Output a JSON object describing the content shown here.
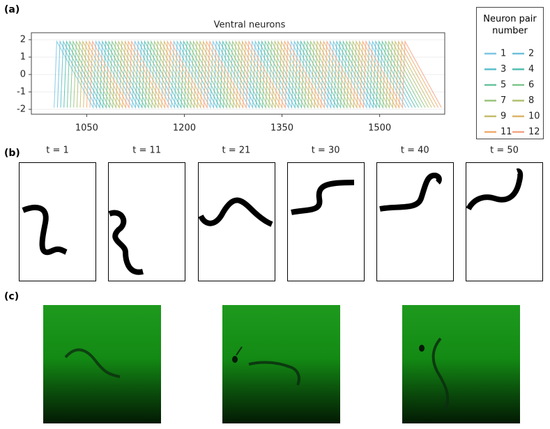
{
  "panel_labels": [
    "(a)",
    "(b)",
    "(c)"
  ],
  "chart_data": {
    "type": "line",
    "title": "Ventral neurons",
    "legend_title": "Neuron pair number",
    "xlim": [
      965,
      1600
    ],
    "ylim": [
      -2.28,
      2.4
    ],
    "xticks": [
      1050,
      1200,
      1350,
      1500
    ],
    "yticks": [
      -2,
      -1,
      0,
      1,
      2
    ],
    "grid": true,
    "series": [
      {
        "name": "1",
        "color": "#7cc6e2",
        "x": [
          1000,
          1004,
          1060,
          1064,
          1120,
          1124,
          1180,
          1184,
          1240,
          1244,
          1300,
          1304,
          1360,
          1364,
          1420,
          1424,
          1480,
          1484,
          1540
        ],
        "values": [
          -1.9,
          1.9,
          -1.9,
          1.9,
          -1.9,
          1.9,
          -1.9,
          1.9,
          -1.9,
          1.9,
          -1.9,
          1.9,
          -1.9,
          1.9,
          -1.9,
          1.9,
          -1.9,
          1.9,
          -1.9
        ]
      },
      {
        "name": "2",
        "color": "#6cc0da",
        "x": [
          1005,
          1009,
          1065,
          1069,
          1125,
          1129,
          1185,
          1189,
          1245,
          1249,
          1305,
          1309,
          1365,
          1369,
          1425,
          1429,
          1485,
          1489,
          1545
        ],
        "values": [
          -1.9,
          1.9,
          -1.9,
          1.9,
          -1.9,
          1.9,
          -1.9,
          1.9,
          -1.9,
          1.9,
          -1.9,
          1.9,
          -1.9,
          1.9,
          -1.9,
          1.9,
          -1.9,
          1.9,
          -1.9
        ]
      },
      {
        "name": "3",
        "color": "#5cbfcc",
        "x": [
          1010,
          1014,
          1070,
          1074,
          1130,
          1134,
          1190,
          1194,
          1250,
          1254,
          1310,
          1314,
          1370,
          1374,
          1430,
          1434,
          1490,
          1494,
          1550
        ],
        "values": [
          -1.9,
          1.9,
          -1.9,
          1.9,
          -1.9,
          1.9,
          -1.9,
          1.9,
          -1.9,
          1.9,
          -1.9,
          1.9,
          -1.9,
          1.9,
          -1.9,
          1.9,
          -1.9,
          1.9,
          -1.9
        ]
      },
      {
        "name": "4",
        "color": "#52bdb0",
        "x": [
          1015,
          1019,
          1075,
          1079,
          1135,
          1139,
          1195,
          1199,
          1255,
          1259,
          1315,
          1319,
          1375,
          1379,
          1435,
          1439,
          1495,
          1499,
          1555
        ],
        "values": [
          -1.9,
          1.9,
          -1.9,
          1.9,
          -1.9,
          1.9,
          -1.9,
          1.9,
          -1.9,
          1.9,
          -1.9,
          1.9,
          -1.9,
          1.9,
          -1.9,
          1.9,
          -1.9,
          1.9,
          -1.9
        ]
      },
      {
        "name": "5",
        "color": "#66c39c",
        "x": [
          1020,
          1024,
          1080,
          1084,
          1140,
          1144,
          1200,
          1204,
          1260,
          1264,
          1320,
          1324,
          1380,
          1384,
          1440,
          1444,
          1500,
          1504,
          1560
        ],
        "values": [
          -1.9,
          1.9,
          -1.9,
          1.9,
          -1.9,
          1.9,
          -1.9,
          1.9,
          -1.9,
          1.9,
          -1.9,
          1.9,
          -1.9,
          1.9,
          -1.9,
          1.9,
          -1.9,
          1.9,
          -1.9
        ]
      },
      {
        "name": "6",
        "color": "#7ec48c",
        "x": [
          1025,
          1029,
          1085,
          1089,
          1145,
          1149,
          1205,
          1209,
          1265,
          1269,
          1325,
          1329,
          1385,
          1389,
          1445,
          1449,
          1505,
          1509,
          1565
        ],
        "values": [
          -1.9,
          1.9,
          -1.9,
          1.9,
          -1.9,
          1.9,
          -1.9,
          1.9,
          -1.9,
          1.9,
          -1.9,
          1.9,
          -1.9,
          1.9,
          -1.9,
          1.9,
          -1.9,
          1.9,
          -1.9
        ]
      },
      {
        "name": "7",
        "color": "#99c47c",
        "x": [
          1030,
          1034,
          1090,
          1094,
          1150,
          1154,
          1210,
          1214,
          1270,
          1274,
          1330,
          1334,
          1390,
          1394,
          1450,
          1454,
          1510,
          1514,
          1570
        ],
        "values": [
          -1.9,
          1.9,
          -1.9,
          1.9,
          -1.9,
          1.9,
          -1.9,
          1.9,
          -1.9,
          1.9,
          -1.9,
          1.9,
          -1.9,
          1.9,
          -1.9,
          1.9,
          -1.9,
          1.9,
          -1.9
        ]
      },
      {
        "name": "8",
        "color": "#afc172",
        "x": [
          1035,
          1039,
          1095,
          1099,
          1155,
          1159,
          1215,
          1219,
          1275,
          1279,
          1335,
          1339,
          1395,
          1399,
          1455,
          1459,
          1515,
          1519,
          1575
        ],
        "values": [
          -1.9,
          1.9,
          -1.9,
          1.9,
          -1.9,
          1.9,
          -1.9,
          1.9,
          -1.9,
          1.9,
          -1.9,
          1.9,
          -1.9,
          1.9,
          -1.9,
          1.9,
          -1.9,
          1.9,
          -1.9
        ]
      },
      {
        "name": "9",
        "color": "#c4bc6a",
        "x": [
          1040,
          1044,
          1100,
          1104,
          1160,
          1164,
          1220,
          1224,
          1280,
          1284,
          1340,
          1344,
          1400,
          1404,
          1460,
          1464,
          1520,
          1524,
          1580
        ],
        "values": [
          -1.9,
          1.9,
          -1.9,
          1.9,
          -1.9,
          1.9,
          -1.9,
          1.9,
          -1.9,
          1.9,
          -1.9,
          1.9,
          -1.9,
          1.9,
          -1.9,
          1.9,
          -1.9,
          1.9,
          -1.9
        ]
      },
      {
        "name": "10",
        "color": "#dcb468",
        "x": [
          1045,
          1049,
          1105,
          1109,
          1165,
          1169,
          1225,
          1229,
          1285,
          1289,
          1345,
          1349,
          1405,
          1409,
          1465,
          1469,
          1525,
          1529,
          1585
        ],
        "values": [
          -1.9,
          1.9,
          -1.9,
          1.9,
          -1.9,
          1.9,
          -1.9,
          1.9,
          -1.9,
          1.9,
          -1.9,
          1.9,
          -1.9,
          1.9,
          -1.9,
          1.9,
          -1.9,
          1.9,
          -1.9
        ]
      },
      {
        "name": "11",
        "color": "#f0ac6e",
        "x": [
          1050,
          1054,
          1110,
          1114,
          1170,
          1174,
          1230,
          1234,
          1290,
          1294,
          1350,
          1354,
          1410,
          1414,
          1470,
          1474,
          1530,
          1534,
          1590
        ],
        "values": [
          -1.9,
          1.9,
          -1.9,
          1.9,
          -1.9,
          1.9,
          -1.9,
          1.9,
          -1.9,
          1.9,
          -1.9,
          1.9,
          -1.9,
          1.9,
          -1.9,
          1.9,
          -1.9,
          1.9,
          -1.9
        ]
      },
      {
        "name": "12",
        "color": "#f4a484",
        "x": [
          1055,
          1059,
          1115,
          1119,
          1175,
          1179,
          1235,
          1239,
          1295,
          1299,
          1355,
          1359,
          1415,
          1419,
          1475,
          1479,
          1535,
          1539,
          1595
        ],
        "values": [
          -1.9,
          1.9,
          -1.9,
          1.9,
          -1.9,
          1.9,
          -1.9,
          1.9,
          -1.9,
          1.9,
          -1.9,
          1.9,
          -1.9,
          1.9,
          -1.9,
          1.9,
          -1.9,
          1.9,
          -1.9
        ]
      }
    ]
  },
  "snapshots": {
    "titles": [
      "t = 1",
      "t = 11",
      "t = 21",
      "t = 30",
      "t = 40",
      "t = 50"
    ]
  }
}
